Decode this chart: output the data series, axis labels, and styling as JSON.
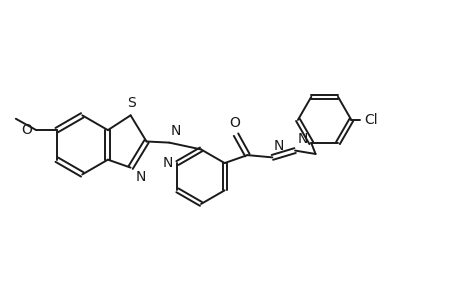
{
  "bg_color": "#ffffff",
  "line_color": "#1a1a1a",
  "line_width": 1.4,
  "font_size": 10,
  "xlim": [
    -1.3,
    2.7
  ],
  "ylim": [
    -0.9,
    0.85
  ]
}
